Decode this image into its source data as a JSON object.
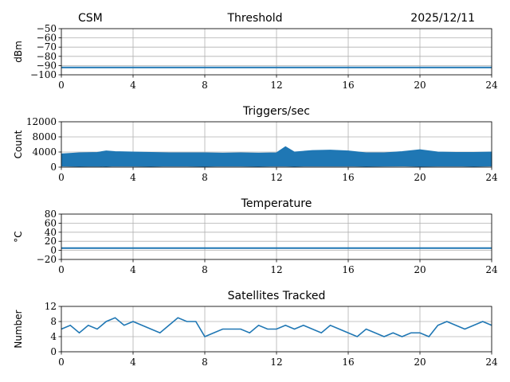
{
  "header": {
    "left": "CSM",
    "center": "Threshold",
    "right": "2025/12/11"
  },
  "colors": {
    "series": "#1f77b4",
    "grid": "#b0b0b0"
  },
  "chart_data": [
    {
      "type": "line",
      "title": "",
      "xlabel": "",
      "ylabel": "dBm",
      "xlim": [
        0,
        24
      ],
      "ylim": [
        -100,
        -50
      ],
      "xticks": [
        "0",
        "4",
        "8",
        "12",
        "16",
        "20",
        "24"
      ],
      "yticks": [
        "−50",
        "−60",
        "−70",
        "−80",
        "−90",
        "−100"
      ],
      "ytick_values": [
        -50,
        -60,
        -70,
        -80,
        -90,
        -100
      ],
      "grid": true,
      "series": [
        {
          "x": [
            0,
            24
          ],
          "values": [
            -92,
            -92
          ]
        }
      ]
    },
    {
      "type": "area",
      "title": "Triggers/sec",
      "xlabel": "",
      "ylabel": "Count",
      "xlim": [
        0,
        24
      ],
      "ylim": [
        0,
        12000
      ],
      "xticks": [
        "0",
        "4",
        "8",
        "12",
        "16",
        "20",
        "24"
      ],
      "yticks": [
        "0",
        "4000",
        "8000",
        "12000"
      ],
      "ytick_values": [
        0,
        4000,
        8000,
        12000
      ],
      "grid": true,
      "series": [
        {
          "x": [
            0,
            1,
            2,
            2.5,
            3,
            4,
            5,
            6,
            7,
            8,
            9,
            10,
            11,
            12,
            12.5,
            13,
            14,
            15,
            16,
            17,
            18,
            19,
            20,
            21,
            22,
            23,
            24
          ],
          "upper": [
            3500,
            3800,
            3900,
            4300,
            4100,
            4000,
            3900,
            3800,
            3800,
            3800,
            3700,
            3800,
            3700,
            3800,
            5400,
            4000,
            4400,
            4500,
            4300,
            3800,
            3800,
            4100,
            4600,
            4000,
            3900,
            3900,
            4000
          ],
          "lower": [
            300,
            200,
            250,
            200,
            300,
            250,
            200,
            300,
            250,
            200,
            300,
            250,
            200,
            300,
            250,
            200,
            300,
            250,
            300,
            200,
            250,
            300,
            200,
            250,
            300,
            200,
            300
          ]
        }
      ]
    },
    {
      "type": "line",
      "title": "Temperature",
      "xlabel": "",
      "ylabel": "°C",
      "xlim": [
        0,
        24
      ],
      "ylim": [
        -20,
        80
      ],
      "xticks": [
        "0",
        "4",
        "8",
        "12",
        "16",
        "20",
        "24"
      ],
      "yticks": [
        "−20",
        "0",
        "20",
        "40",
        "60",
        "80"
      ],
      "ytick_values": [
        -20,
        0,
        20,
        40,
        60,
        80
      ],
      "grid": true,
      "series": [
        {
          "x": [
            0,
            24
          ],
          "values": [
            5,
            5
          ]
        }
      ]
    },
    {
      "type": "line",
      "title": "Satellites Tracked",
      "xlabel": "",
      "ylabel": "Number",
      "xlim": [
        0,
        24
      ],
      "ylim": [
        0,
        12
      ],
      "xticks": [
        "0",
        "4",
        "8",
        "12",
        "16",
        "20",
        "24"
      ],
      "yticks": [
        "0",
        "4",
        "8",
        "12"
      ],
      "ytick_values": [
        0,
        4,
        8,
        12
      ],
      "grid": true,
      "series": [
        {
          "x": [
            0,
            0.5,
            1,
            1.5,
            2,
            2.5,
            3,
            3.5,
            4,
            4.5,
            5,
            5.5,
            6,
            6.5,
            7,
            7.5,
            8,
            8.5,
            9,
            9.5,
            10,
            10.5,
            11,
            11.5,
            12,
            12.5,
            13,
            13.5,
            14,
            14.5,
            15,
            15.5,
            16,
            16.5,
            17,
            17.5,
            18,
            18.5,
            19,
            19.5,
            20,
            20.5,
            21,
            21.5,
            22,
            22.5,
            23,
            23.5,
            24
          ],
          "values": [
            6,
            7,
            5,
            7,
            6,
            8,
            9,
            7,
            8,
            7,
            6,
            5,
            7,
            9,
            8,
            8,
            4,
            5,
            6,
            6,
            6,
            5,
            7,
            6,
            6,
            7,
            6,
            7,
            6,
            5,
            7,
            6,
            5,
            4,
            6,
            5,
            4,
            5,
            4,
            5,
            5,
            4,
            7,
            8,
            7,
            6,
            7,
            8,
            7
          ]
        }
      ]
    }
  ]
}
